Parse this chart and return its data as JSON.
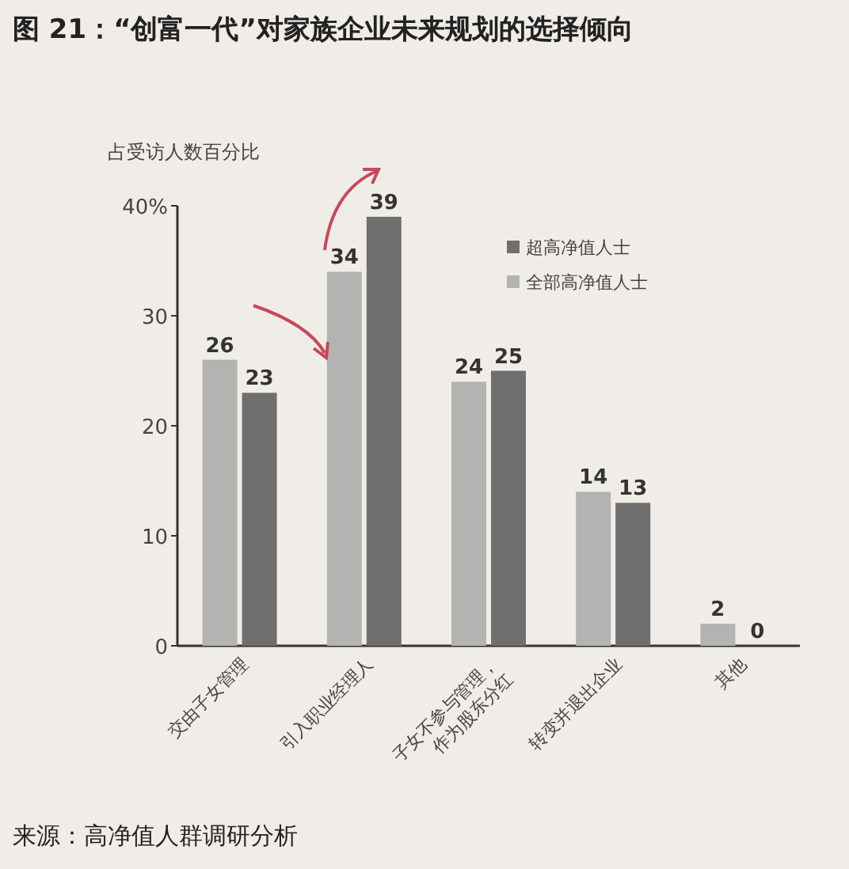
{
  "chart_data": {
    "type": "bar",
    "title": "图 21：“创富一代”对家族企业未来规划的选择倾向",
    "ylabel": "占受访人数百分比",
    "categories": [
      "交由子女管理",
      "引入职业经理人",
      "子女不参与管理，\n作为股东分红",
      "转变并退出企业",
      "其他"
    ],
    "series": [
      {
        "name": "全部高净值人士",
        "color": "#b3b3b1",
        "values": [
          26,
          34,
          24,
          14,
          2
        ]
      },
      {
        "name": "超高净值人士",
        "color": "#6f6f6f",
        "values": [
          23,
          39,
          25,
          13,
          0
        ]
      }
    ],
    "ylim": [
      0,
      40
    ],
    "yticks": [
      0,
      10,
      20,
      30,
      {
        "value": 40,
        "label": "40%"
      }
    ],
    "data_labels": true,
    "legend": "top right",
    "annotations": [
      "来源：高净值人群调研分析"
    ]
  }
}
